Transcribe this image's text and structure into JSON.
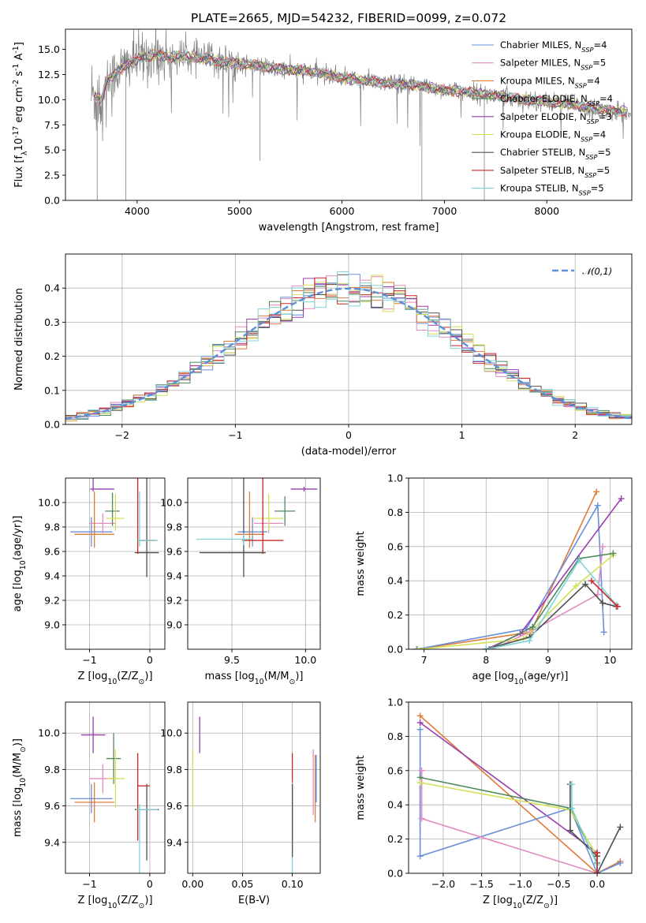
{
  "chart_data": [
    {
      "type": "line",
      "title": "PLATE=2665, MJD=54232, FIBERID=0099, z=0.072",
      "xlabel": "wavelength [Angstrom, rest frame]",
      "ylabel": "Flux [f$_\\lambda$10$^{-17}$ erg cm$^{-2}$ s$^{-1}$ A$^{-1}$]",
      "xlim": [
        3300,
        8830
      ],
      "ylim": [
        0,
        17
      ],
      "xticks": [
        4000,
        5000,
        6000,
        7000,
        8000
      ],
      "yticks": [
        0.0,
        2.5,
        5.0,
        7.5,
        10.0,
        12.5,
        15.0
      ],
      "grid": false,
      "legend_position": "upper right",
      "series": [
        {
          "name": "Chabrier MILES, N$_{SSP}$=4",
          "color": "#6a8fd8"
        },
        {
          "name": "Salpeter MILES, N$_{SSP}$=5",
          "color": "#e38bbf"
        },
        {
          "name": "Kroupa MILES, N$_{SSP}$=4",
          "color": "#e07b39"
        },
        {
          "name": "Chabrier ELODIE, N$_{SSP}$=4",
          "color": "#4e8a5c"
        },
        {
          "name": "Salpeter ELODIE, N$_{SSP}$=3",
          "color": "#9b3db0"
        },
        {
          "name": "Kroupa ELODIE, N$_{SSP}$=4",
          "color": "#d4e157"
        },
        {
          "name": "Chabrier STELIB, N$_{SSP}$=5",
          "color": "#505050"
        },
        {
          "name": "Salpeter STELIB, N$_{SSP}$=5",
          "color": "#c62828"
        },
        {
          "name": "Kroupa STELIB, N$_{SSP}$=5",
          "color": "#7fd3d9"
        }
      ],
      "data_color": "#808080",
      "continuum": {
        "x": [
          3550,
          3650,
          3700,
          3800,
          3900,
          4000,
          4100,
          4200,
          4300,
          4400,
          4600,
          4800,
          5000,
          5200,
          5400,
          5600,
          5800,
          6000,
          6200,
          6400,
          6600,
          6800,
          7000,
          7200,
          7400,
          7600,
          7800,
          8000,
          8200,
          8400,
          8600,
          8800
        ],
        "y": [
          10.5,
          10.0,
          11.8,
          12.8,
          13.5,
          14.0,
          14.3,
          14.5,
          14.2,
          14.3,
          14.2,
          13.8,
          13.6,
          13.3,
          13.0,
          12.9,
          12.6,
          12.2,
          11.9,
          11.7,
          11.5,
          11.3,
          11.0,
          10.8,
          10.5,
          10.3,
          10.0,
          9.8,
          9.6,
          9.2,
          8.9,
          8.8
        ]
      },
      "dips": [
        {
          "x": 3610,
          "y": 0.0
        },
        {
          "x": 3890,
          "y": 0.0
        },
        {
          "x": 5200,
          "y": 3.9
        },
        {
          "x": 6780,
          "y": 0.0
        },
        {
          "x": 7390,
          "y": 0.0
        }
      ]
    },
    {
      "type": "area",
      "xlabel": "(data-model)/error",
      "ylabel": "Normed distribution",
      "xlim": [
        -2.5,
        2.5
      ],
      "ylim": [
        0,
        0.5
      ],
      "xticks": [
        -2,
        -1,
        0,
        1,
        2
      ],
      "yticks": [
        0.0,
        0.1,
        0.2,
        0.3,
        0.4
      ],
      "grid": true,
      "legend_position": "upper right",
      "legend": [
        {
          "name": "$\\mathcal{N}(0,1)$",
          "color": "#5b8fd6",
          "style": "dashed"
        }
      ],
      "histogram_bins": {
        "start": -2.5,
        "width": 0.1,
        "count": 50
      },
      "gaussian": {
        "mean": 0,
        "sigma": 1
      }
    },
    {
      "type": "scatter",
      "xlabel": "Z [log$_{10}$(Z/Z$_\\odot$)]",
      "ylabel": "age  [log$_{10}$(age/yr)]",
      "xlim": [
        -1.4,
        0.25
      ],
      "ylim": [
        8.8,
        10.2
      ],
      "xticks": [
        -1,
        0
      ],
      "yticks": [
        9.0,
        9.2,
        9.4,
        9.6,
        9.8,
        10.0
      ],
      "grid": true,
      "points": [
        {
          "color": "#6a8fd8",
          "x": -0.97,
          "y": 9.76,
          "xerr": [
            0.35,
            0.35
          ],
          "yerr": [
            0.12,
            0.12
          ]
        },
        {
          "color": "#e38bbf",
          "x": -0.78,
          "y": 9.83,
          "xerr": [
            0.22,
            0.22
          ],
          "yerr": [
            0.08,
            0.08
          ]
        },
        {
          "color": "#e07b39",
          "x": -0.92,
          "y": 9.74,
          "xerr": [
            0.33,
            0.33
          ],
          "yerr": [
            0.11,
            0.35
          ]
        },
        {
          "color": "#4e8a5c",
          "x": -0.62,
          "y": 9.93,
          "xerr": [
            0.12,
            0.12
          ],
          "yerr": [
            0.12,
            0.15
          ]
        },
        {
          "color": "#9b3db0",
          "x": -0.94,
          "y": 10.11,
          "xerr": [
            0.05,
            0.35
          ],
          "yerr": [
            0.02,
            0.3
          ]
        },
        {
          "color": "#d4e157",
          "x": -0.57,
          "y": 9.87,
          "xerr": [
            0.15,
            0.15
          ],
          "yerr": [
            0.1,
            0.2
          ]
        },
        {
          "color": "#505050",
          "x": -0.05,
          "y": 9.59,
          "xerr": [
            0.2,
            0.2
          ],
          "yerr": [
            0.2,
            0.7
          ]
        },
        {
          "color": "#c62828",
          "x": -0.2,
          "y": 9.69,
          "xerr": [
            0.0,
            0.3
          ],
          "yerr": [
            0.11,
            0.82
          ]
        },
        {
          "color": "#7fd3d9",
          "x": -0.17,
          "y": 9.69,
          "xerr": [
            0.05,
            0.3
          ],
          "yerr": [
            0.05,
            0.4
          ]
        }
      ]
    },
    {
      "type": "scatter",
      "xlabel": "mass [log$_{10}$(M/M$_\\odot$)]",
      "xlim": [
        9.2,
        10.1
      ],
      "ylim": [
        8.8,
        10.2
      ],
      "xticks": [
        9.5,
        10.0
      ],
      "yticks": [
        9.0,
        9.2,
        9.4,
        9.6,
        9.8,
        10.0
      ],
      "grid": true,
      "points": [
        {
          "color": "#6a8fd8",
          "x": 9.64,
          "y": 9.76,
          "xerr": [
            0.1,
            0.1
          ],
          "yerr": [
            0.12,
            0.12
          ]
        },
        {
          "color": "#e38bbf",
          "x": 9.75,
          "y": 9.83,
          "xerr": [
            0.1,
            0.1
          ],
          "yerr": [
            0.08,
            0.08
          ]
        },
        {
          "color": "#e07b39",
          "x": 9.62,
          "y": 9.74,
          "xerr": [
            0.1,
            0.1
          ],
          "yerr": [
            0.11,
            0.35
          ]
        },
        {
          "color": "#4e8a5c",
          "x": 9.86,
          "y": 9.93,
          "xerr": [
            0.07,
            0.07
          ],
          "yerr": [
            0.12,
            0.12
          ]
        },
        {
          "color": "#9b3db0",
          "x": 9.99,
          "y": 10.11,
          "xerr": [
            0.09,
            0.09
          ],
          "yerr": [
            0.02,
            0.02
          ]
        },
        {
          "color": "#d4e157",
          "x": 9.75,
          "y": 9.87,
          "xerr": [
            0.1,
            0.1
          ],
          "yerr": [
            0.1,
            0.2
          ]
        },
        {
          "color": "#505050",
          "x": 9.58,
          "y": 9.59,
          "xerr": [
            0.3,
            0.15
          ],
          "yerr": [
            0.2,
            0.7
          ]
        },
        {
          "color": "#c62828",
          "x": 9.71,
          "y": 9.69,
          "xerr": [
            0.14,
            0.14
          ],
          "yerr": [
            0.11,
            0.82
          ]
        },
        {
          "color": "#7fd3d9",
          "x": 9.58,
          "y": 9.7,
          "xerr": [
            0.32,
            0.06
          ],
          "yerr": [
            0.05,
            0.05
          ]
        }
      ]
    },
    {
      "type": "line",
      "xlabel": "age  [log$_{10}$(age/yr)]",
      "ylabel": "mass weight",
      "xlim": [
        6.75,
        10.35
      ],
      "ylim": [
        0,
        1
      ],
      "xticks": [
        7,
        8,
        9,
        10
      ],
      "yticks": [
        0.0,
        0.2,
        0.4,
        0.6,
        0.8,
        1.0
      ],
      "grid": true,
      "series": [
        {
          "color": "#e07b39",
          "x": [
            6.88,
            8.72,
            9.78
          ],
          "y": [
            0.0,
            0.1,
            0.92
          ]
        },
        {
          "color": "#6a8fd8",
          "x": [
            6.88,
            8.65,
            9.8,
            9.9
          ],
          "y": [
            0.0,
            0.12,
            0.84,
            0.1
          ]
        },
        {
          "color": "#9b3db0",
          "x": [
            8.0,
            8.55,
            10.18
          ],
          "y": [
            0.0,
            0.09,
            0.88
          ]
        },
        {
          "color": "#e38bbf",
          "x": [
            8.1,
            8.7,
            9.8,
            9.88
          ],
          "y": [
            0.0,
            0.1,
            0.32,
            0.6
          ]
        },
        {
          "color": "#d4e157",
          "x": [
            6.9,
            8.6,
            9.45,
            10.05
          ],
          "y": [
            0.0,
            0.06,
            0.37,
            0.55
          ]
        },
        {
          "color": "#4e8a5c",
          "x": [
            8.05,
            8.75,
            9.5,
            10.05
          ],
          "y": [
            0.0,
            0.13,
            0.53,
            0.56
          ]
        },
        {
          "color": "#505050",
          "x": [
            8.0,
            8.7,
            9.6,
            9.88,
            10.1
          ],
          "y": [
            0.0,
            0.07,
            0.38,
            0.27,
            0.25
          ]
        },
        {
          "color": "#7fd3d9",
          "x": [
            8.0,
            8.7,
            9.5,
            10.1
          ],
          "y": [
            0.0,
            0.05,
            0.52,
            0.26
          ]
        },
        {
          "color": "#c62828",
          "x": [
            9.7,
            10.12
          ],
          "y": [
            0.4,
            0.25
          ]
        }
      ]
    },
    {
      "type": "scatter",
      "xlabel": "Z [log$_{10}$(Z/Z$_\\odot$)]",
      "ylabel": "mass [log$_{10}$(M/M$_\\odot$)]",
      "xlim": [
        -1.4,
        0.25
      ],
      "ylim": [
        9.23,
        10.17
      ],
      "xticks": [
        -1,
        0
      ],
      "yticks": [
        9.4,
        9.6,
        9.8,
        10.0
      ],
      "grid": true,
      "points": [
        {
          "color": "#6a8fd8",
          "x": -0.97,
          "y": 9.64,
          "xerr": [
            0.35,
            0.35
          ],
          "yerr": [
            0.08,
            0.08
          ]
        },
        {
          "color": "#e38bbf",
          "x": -0.78,
          "y": 9.75,
          "xerr": [
            0.22,
            0.22
          ],
          "yerr": [
            0.08,
            0.08
          ]
        },
        {
          "color": "#e07b39",
          "x": -0.92,
          "y": 9.62,
          "xerr": [
            0.33,
            0.33
          ],
          "yerr": [
            0.11,
            0.11
          ]
        },
        {
          "color": "#4e8a5c",
          "x": -0.6,
          "y": 9.86,
          "xerr": [
            0.12,
            0.12
          ],
          "yerr": [
            0.14,
            0.14
          ]
        },
        {
          "color": "#9b3db0",
          "x": -0.94,
          "y": 9.99,
          "xerr": [
            0.2,
            0.2
          ],
          "yerr": [
            0.1,
            0.1
          ]
        },
        {
          "color": "#d4e157",
          "x": -0.57,
          "y": 9.75,
          "xerr": [
            0.15,
            0.15
          ],
          "yerr": [
            0.16,
            0.16
          ]
        },
        {
          "color": "#505050",
          "x": -0.05,
          "y": 9.58,
          "xerr": [
            0.2,
            0.2
          ],
          "yerr": [
            0.28,
            0.14
          ]
        },
        {
          "color": "#c62828",
          "x": -0.2,
          "y": 9.71,
          "xerr": [
            0.0,
            0.2
          ],
          "yerr": [
            0.3,
            0.18
          ]
        },
        {
          "color": "#7fd3d9",
          "x": -0.17,
          "y": 9.58,
          "xerr": [
            0.05,
            0.3
          ],
          "yerr": [
            0.35,
            0.03
          ]
        }
      ]
    },
    {
      "type": "scatter",
      "xlabel": "E(B-V)",
      "xlim": [
        -0.005,
        0.128
      ],
      "ylim": [
        9.23,
        10.17
      ],
      "xticks": [
        0.0,
        0.05,
        0.1
      ],
      "yticks": [
        9.4,
        9.6,
        9.8,
        10.0
      ],
      "grid": true,
      "points": [
        {
          "color": "#d4e157",
          "x": 0.0,
          "y": 9.75,
          "xerr": [
            0,
            0
          ],
          "yerr": [
            0.16,
            0.16
          ]
        },
        {
          "color": "#9b3db0",
          "x": 0.007,
          "y": 9.99,
          "xerr": [
            0,
            0
          ],
          "yerr": [
            0.1,
            0.1
          ]
        },
        {
          "color": "#c62828",
          "x": 0.1,
          "y": 9.71,
          "xerr": [
            0,
            0
          ],
          "yerr": [
            0.3,
            0.18
          ]
        },
        {
          "color": "#7fd3d9",
          "x": 0.1,
          "y": 9.58,
          "xerr": [
            0,
            0
          ],
          "yerr": [
            0.35,
            0.15
          ]
        },
        {
          "color": "#505050",
          "x": 0.1,
          "y": 9.62,
          "xerr": [
            0,
            0
          ],
          "yerr": [
            0.3,
            0.1
          ]
        },
        {
          "color": "#e38bbf",
          "x": 0.121,
          "y": 9.75,
          "xerr": [
            0,
            0
          ],
          "yerr": [
            0.2,
            0.16
          ]
        },
        {
          "color": "#e07b39",
          "x": 0.123,
          "y": 9.68,
          "xerr": [
            0,
            0
          ],
          "yerr": [
            0.17,
            0.2
          ]
        },
        {
          "color": "#6a8fd8",
          "x": 0.124,
          "y": 9.72,
          "xerr": [
            0,
            0
          ],
          "yerr": [
            0.1,
            0.16
          ]
        }
      ]
    },
    {
      "type": "line",
      "xlabel": "Z [log$_{10}$(Z/Z$_\\odot$)]",
      "ylabel": "mass weight",
      "xlim": [
        -2.45,
        0.45
      ],
      "ylim": [
        0,
        1
      ],
      "xticks": [
        -2.0,
        -1.5,
        -1.0,
        -0.5,
        0.0
      ],
      "yticks": [
        0.0,
        0.2,
        0.4,
        0.6,
        0.8,
        1.0
      ],
      "grid": true,
      "series": [
        {
          "color": "#e07b39",
          "x": [
            -2.3,
            0.0,
            0.3
          ],
          "y": [
            0.92,
            0.0,
            0.07
          ]
        },
        {
          "color": "#9b3db0",
          "x": [
            -2.3,
            0.0
          ],
          "y": [
            0.88,
            0.12
          ]
        },
        {
          "color": "#6a8fd8",
          "x": [
            -2.3,
            -2.3,
            -0.35,
            0.0,
            0.3
          ],
          "y": [
            0.84,
            0.1,
            0.38,
            0.0,
            0.06
          ]
        },
        {
          "color": "#e38bbf",
          "x": [
            -2.28,
            -2.28,
            0.0
          ],
          "y": [
            0.6,
            0.32,
            0.0
          ]
        },
        {
          "color": "#4e8a5c",
          "x": [
            -2.3,
            -0.35,
            0.0
          ],
          "y": [
            0.56,
            0.38,
            0.06
          ]
        },
        {
          "color": "#d4e157",
          "x": [
            -2.3,
            -0.35,
            0.0
          ],
          "y": [
            0.53,
            0.37,
            0.1
          ]
        },
        {
          "color": "#505050",
          "x": [
            -0.35,
            -0.35,
            0.0,
            0.0,
            0.3
          ],
          "y": [
            0.52,
            0.25,
            0.1,
            0.0,
            0.27
          ]
        },
        {
          "color": "#7fd3d9",
          "x": [
            -0.33,
            -0.33,
            0.0
          ],
          "y": [
            0.52,
            0.38,
            0.05
          ]
        },
        {
          "color": "#c62828",
          "x": [
            0.0,
            0.0
          ],
          "y": [
            0.0,
            0.12
          ]
        }
      ]
    }
  ]
}
